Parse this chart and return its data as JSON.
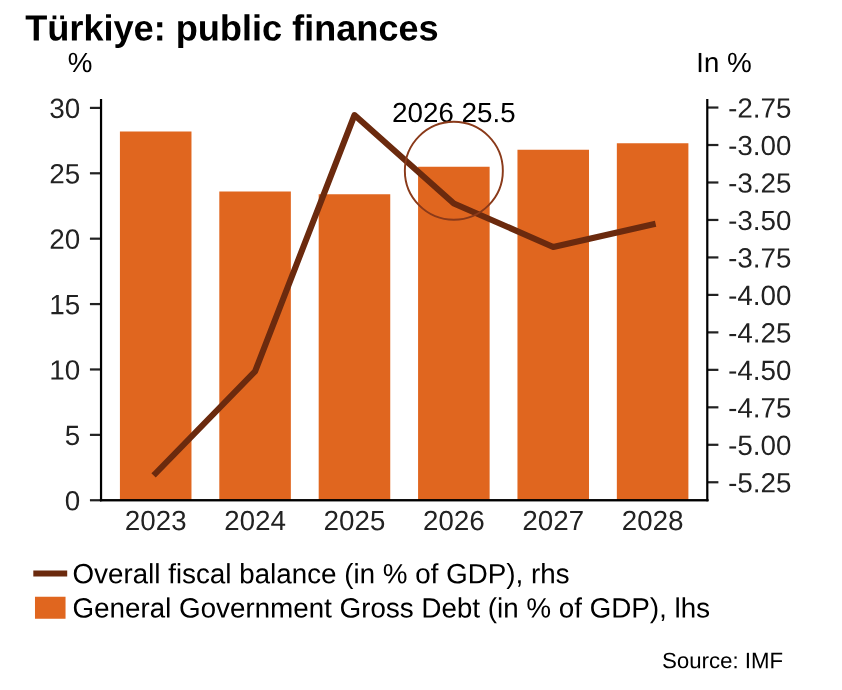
{
  "chart_data": {
    "type": "bar",
    "title": "Türkiye: public finances",
    "ylabel": "%",
    "y2label": "In %",
    "categories": [
      "2023",
      "2024",
      "2025",
      "2026",
      "2027",
      "2028"
    ],
    "series": [
      {
        "name": "Overall fiscal balance (in % of GDP), rhs",
        "type": "line",
        "axis": "y2",
        "color": "#6b2a0e",
        "values": [
          -5.19,
          -4.51,
          -2.8,
          -3.39,
          -3.68,
          -3.53
        ]
      },
      {
        "name": "General Government Gross Debt (in % of GDP), lhs",
        "color": "#e0661f",
        "values": [
          28.2,
          23.6,
          23.4,
          25.5,
          26.8,
          27.3
        ]
      }
    ],
    "ylim": [
      0,
      30.6
    ],
    "yticks": [
      0,
      5,
      10,
      15,
      20,
      25,
      30
    ],
    "y2lim": [
      -5.37,
      -2.7
    ],
    "y2ticks": [
      -5.25,
      {
        "value": -5,
        "label": "-5.00"
      },
      -4.75,
      {
        "value": -4.5,
        "label": "-4.50"
      },
      -4.25,
      {
        "value": -4,
        "label": "-4.00"
      },
      -3.75,
      {
        "value": -3.5,
        "label": "-3.50"
      },
      -3.25,
      {
        "value": -3,
        "label": "-3.00"
      },
      -2.75
    ],
    "annotations": [
      {
        "text": "2026 25.5",
        "x": "2026",
        "y": 25.5
      },
      "Source: IMF"
    ],
    "legend": "bottom",
    "grid": false,
    "marker": "none",
    "line_style": "solid"
  }
}
